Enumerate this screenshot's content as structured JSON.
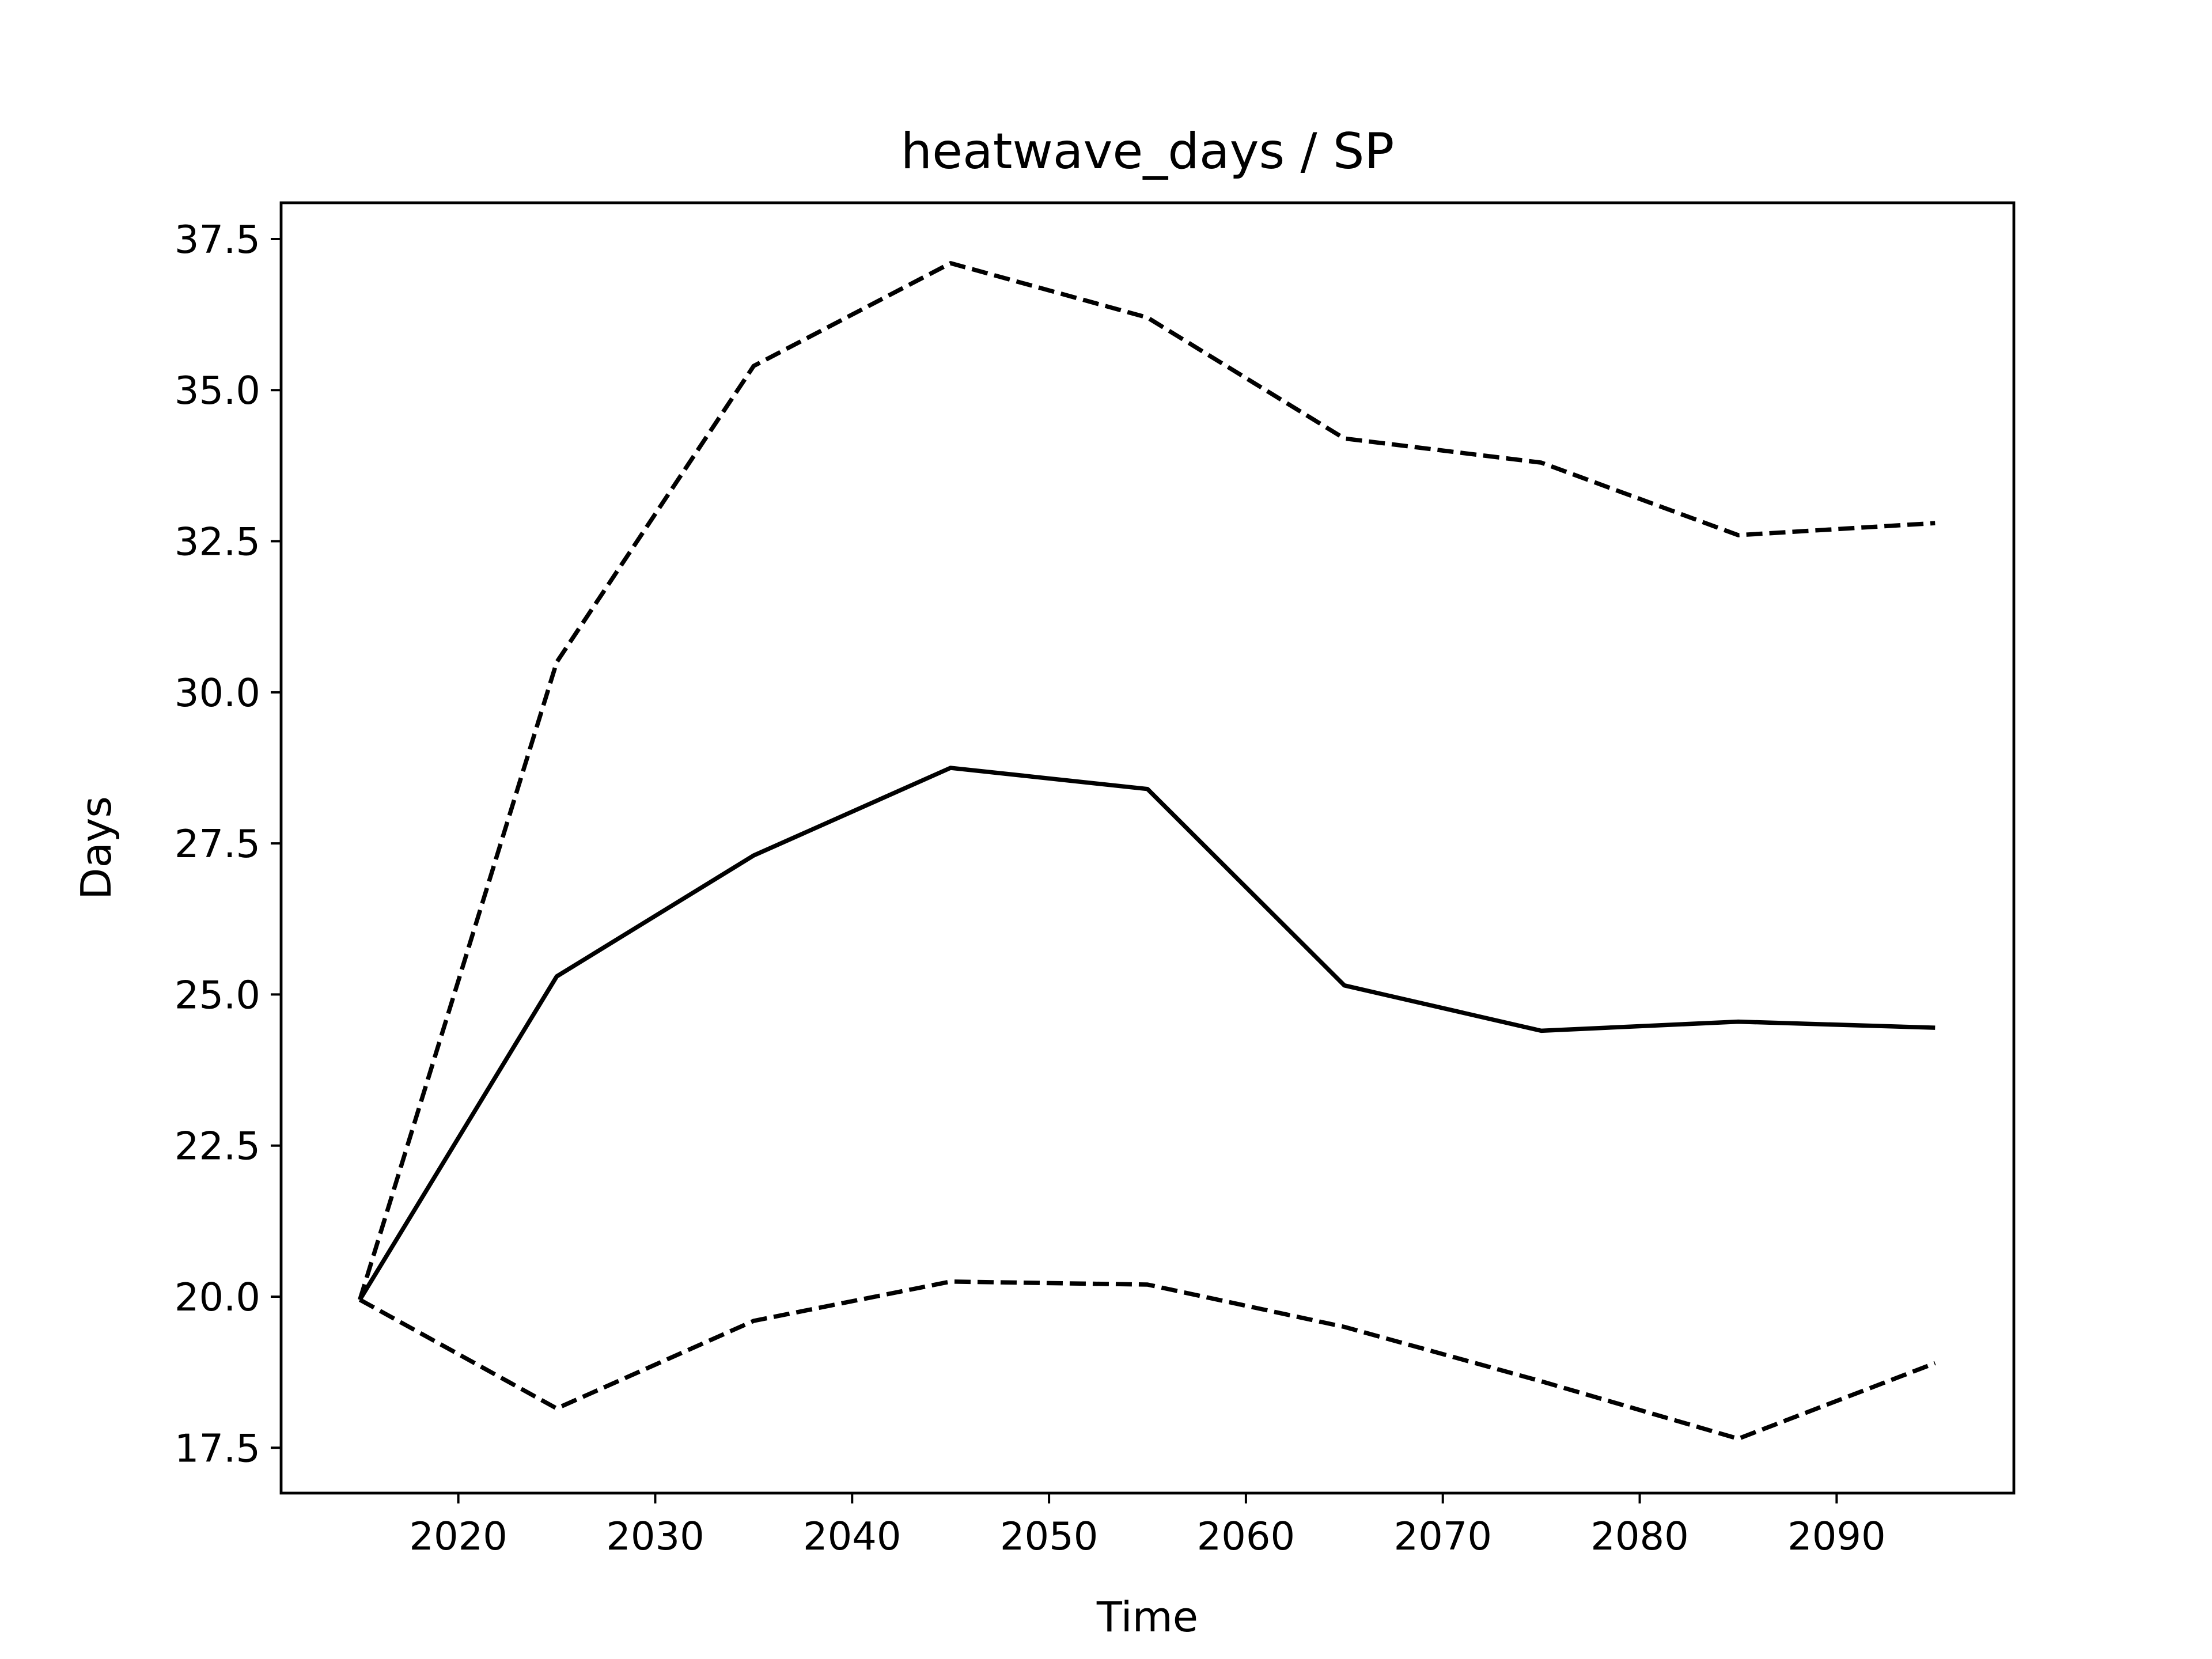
{
  "chart_data": {
    "type": "line",
    "title": "heatwave_days / SP",
    "xlabel": "Time",
    "ylabel": "Days",
    "x": [
      2015,
      2025,
      2035,
      2045,
      2055,
      2065,
      2075,
      2085,
      2095
    ],
    "x_ticks": [
      2020,
      2030,
      2040,
      2050,
      2060,
      2070,
      2080,
      2090
    ],
    "y_ticks": [
      "17.5",
      "20.0",
      "22.5",
      "25.0",
      "27.5",
      "30.0",
      "32.5",
      "35.0",
      "37.5"
    ],
    "xlim": [
      2011,
      2099
    ],
    "ylim": [
      16.75,
      38.1
    ],
    "grid": false,
    "series": [
      {
        "style": "dashed",
        "values": [
          19.95,
          30.5,
          35.4,
          37.1,
          36.2,
          34.2,
          33.8,
          32.6,
          32.8
        ]
      },
      {
        "style": "solid",
        "values": [
          19.95,
          25.3,
          27.3,
          28.75,
          28.4,
          25.15,
          24.4,
          24.55,
          24.45
        ]
      },
      {
        "style": "dashed",
        "values": [
          19.95,
          18.15,
          19.6,
          20.25,
          20.2,
          19.5,
          18.6,
          17.65,
          18.9
        ]
      }
    ],
    "colors": {
      "line": "#000000",
      "background": "#ffffff"
    }
  }
}
